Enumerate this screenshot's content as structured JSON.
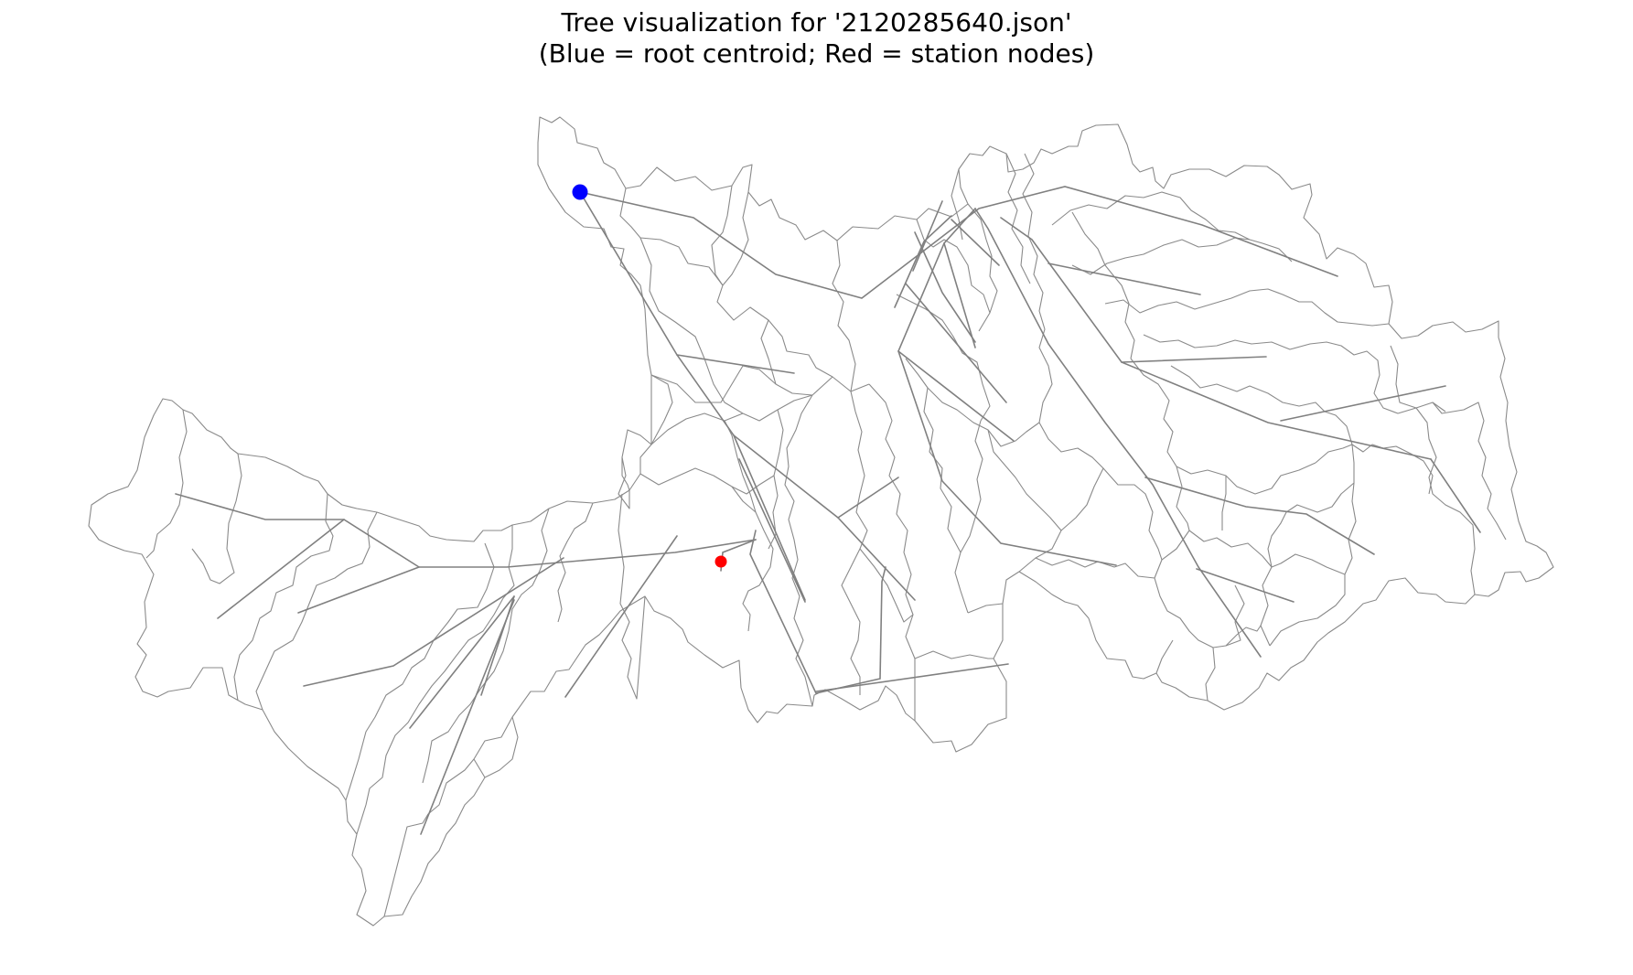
{
  "figure": {
    "title_line1": "Tree visualization for '2120285640.json'",
    "title_line2": "(Blue = root centroid; Red = station nodes)"
  },
  "legend_colors": {
    "root": "#0000ff",
    "station": "#ff0000",
    "edge": "#808080",
    "boundary": "#8a8a8a"
  },
  "nodes": {
    "root": {
      "role": "root centroid",
      "color": "#0000ff"
    },
    "stations": [
      {
        "role": "station node",
        "color": "#ff0000"
      }
    ]
  }
}
